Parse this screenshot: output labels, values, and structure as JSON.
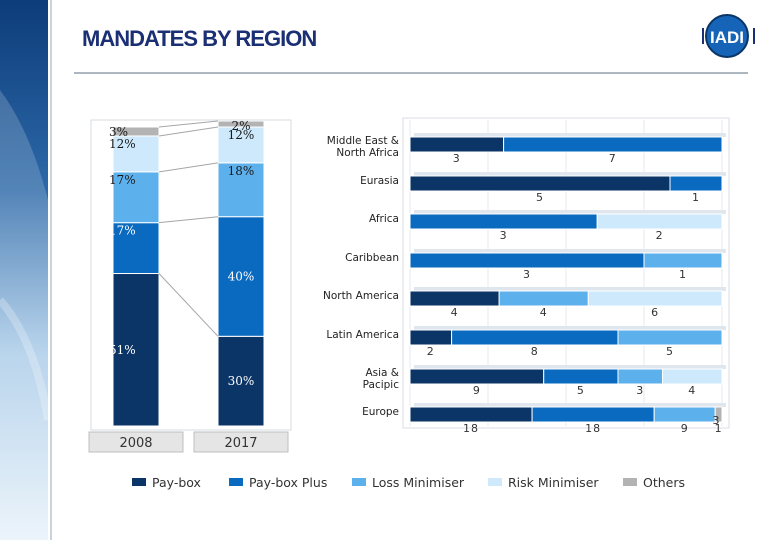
{
  "header": {
    "title": "MANDATES BY REGION",
    "logo_text": "IADI"
  },
  "colors": {
    "Pay-box": "#0b3566",
    "Pay-box Plus": "#0a6ac0",
    "Loss Minimiser": "#5cb0ec",
    "Risk Minimiser": "#cde9fb",
    "Others": "#b3b3b3"
  },
  "chart_data": [
    {
      "type": "bar",
      "stacked": true,
      "normalized": true,
      "categories": [
        "2008",
        "2017"
      ],
      "series": [
        {
          "name": "Pay-box",
          "values": [
            51,
            30
          ],
          "labels": [
            "51%",
            "30%"
          ]
        },
        {
          "name": "Pay-box Plus",
          "values": [
            17,
            40
          ],
          "labels": [
            "17%",
            "40%"
          ]
        },
        {
          "name": "Loss Minimiser",
          "values": [
            17,
            18
          ],
          "labels": [
            "17%",
            "18%"
          ]
        },
        {
          "name": "Risk Minimiser",
          "values": [
            12,
            12
          ],
          "labels": [
            "12%",
            "12%"
          ]
        },
        {
          "name": "Others",
          "values": [
            3,
            2
          ],
          "labels": [
            "3%",
            "2%"
          ]
        }
      ],
      "ylim": [
        0,
        100
      ]
    },
    {
      "type": "bar",
      "orientation": "horizontal",
      "stacked": true,
      "normalized": true,
      "categories": [
        "Middle East & North Africa",
        "Eurasia",
        "Africa",
        "Caribbean",
        "North America",
        "Latin America",
        "Asia & Pacipic",
        "Europe"
      ],
      "series": [
        {
          "name": "Pay-box",
          "values": [
            3,
            5,
            0,
            0,
            4,
            2,
            9,
            18
          ]
        },
        {
          "name": "Pay-box Plus",
          "values": [
            7,
            1,
            3,
            3,
            0,
            8,
            5,
            18
          ]
        },
        {
          "name": "Loss Minimiser",
          "values": [
            0,
            0,
            0,
            1,
            4,
            5,
            3,
            9
          ]
        },
        {
          "name": "Risk Minimiser",
          "values": [
            0,
            0,
            2,
            0,
            6,
            0,
            4,
            0
          ]
        },
        {
          "name": "Others",
          "values": [
            0,
            0,
            0,
            0,
            0,
            0,
            0,
            1
          ]
        }
      ],
      "point_labels": [
        [
          "3",
          "7",
          "",
          "",
          ""
        ],
        [
          "5",
          "1",
          "",
          "",
          ""
        ],
        [
          "",
          "3",
          "",
          "2",
          ""
        ],
        [
          "",
          "3",
          "1",
          "",
          ""
        ],
        [
          "4",
          "",
          "4",
          "6",
          ""
        ],
        [
          "2",
          "8",
          "5",
          "",
          ""
        ],
        [
          "9",
          "5",
          "3",
          "4",
          ""
        ],
        [
          "18",
          "18",
          "9",
          "",
          "1"
        ]
      ],
      "extra_labels": [
        "3"
      ],
      "legend": {
        "position": "bottom",
        "entries": [
          "Pay-box",
          "Pay-box Plus",
          "Loss Minimiser",
          "Risk Minimiser",
          "Others"
        ]
      }
    }
  ]
}
